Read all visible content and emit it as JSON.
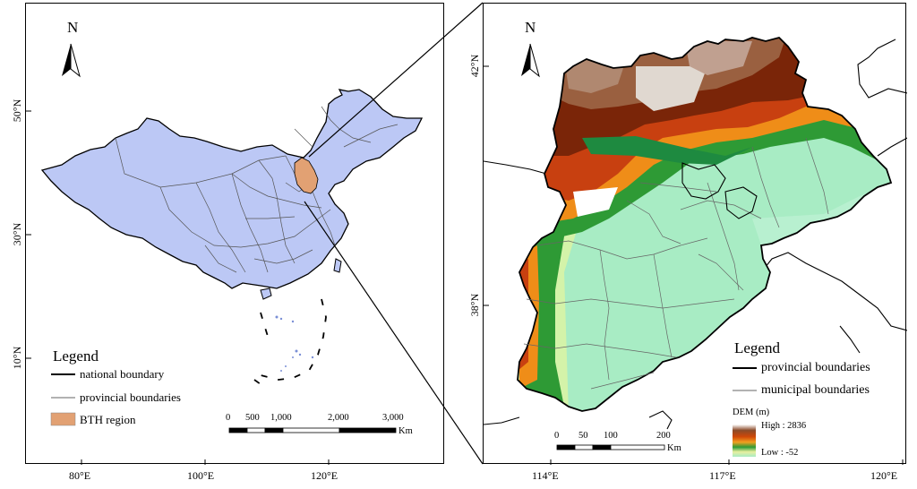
{
  "left_map": {
    "lat_labels": [
      "50°N",
      "30°N",
      "10°N"
    ],
    "lon_labels": [
      "80°E",
      "100°E",
      "120°E"
    ],
    "north_label": "N",
    "legend": {
      "title": "Legend",
      "items": [
        "national boundary",
        "provincial boundaries",
        "BTH region"
      ]
    },
    "scale": {
      "ticks": [
        "0",
        "500",
        "1,000",
        "2,000",
        "3,000"
      ],
      "unit": "Km"
    },
    "colors": {
      "china_fill": "#bcc8f5",
      "bth_fill": "#e2a173"
    }
  },
  "right_map": {
    "lat_labels": [
      "42°N",
      "38°N"
    ],
    "lon_labels": [
      "114°E",
      "117°E",
      "120°E"
    ],
    "north_label": "N",
    "legend": {
      "title": "Legend",
      "items": [
        "provincial boundaries",
        "municipal boundaries"
      ],
      "dem_title": "DEM (m)",
      "high_label": "High : 2836",
      "low_label": "Low : -52"
    },
    "scale": {
      "ticks": [
        "0",
        "50",
        "100",
        "200"
      ],
      "unit": "Km"
    },
    "colors": {
      "lowland": "#a8ecc4",
      "plain_light": "#d8f4a6",
      "green": "#2e9a35",
      "orange": "#ef8d18",
      "brown": "#7a2508",
      "white": "#ffffff"
    }
  }
}
